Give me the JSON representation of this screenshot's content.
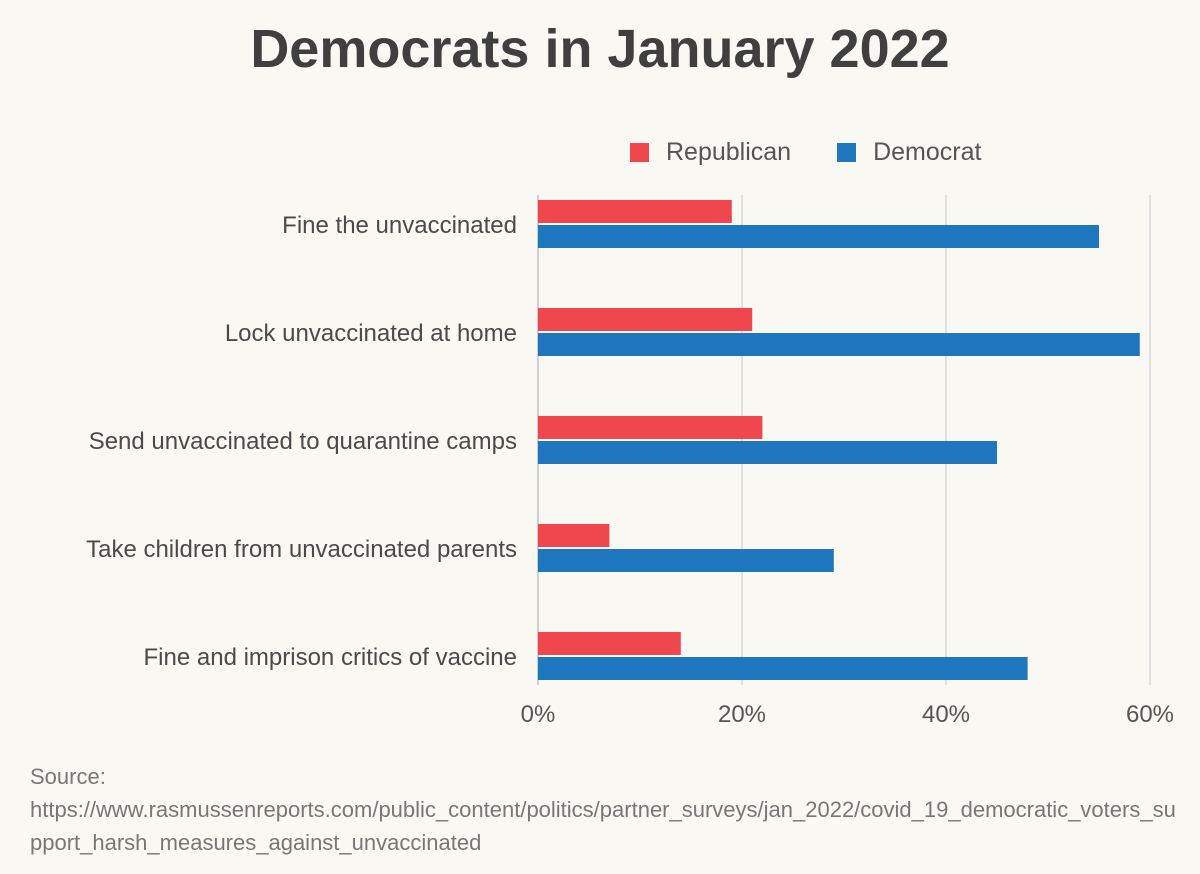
{
  "title": "Democrats in January 2022",
  "chart_data": {
    "type": "bar",
    "orientation": "horizontal",
    "categories": [
      "Fine the unvaccinated",
      "Lock unvaccinated at home",
      "Send unvaccinated to quarantine camps",
      "Take children from unvaccinated parents",
      "Fine and imprison critics of vaccine"
    ],
    "series": [
      {
        "name": "Republican",
        "color": "#f0474f",
        "values": [
          19,
          21,
          22,
          7,
          14
        ]
      },
      {
        "name": "Democrat",
        "color": "#1f77c0",
        "values": [
          55,
          59,
          45,
          29,
          48
        ]
      }
    ],
    "xlim": [
      0,
      60
    ],
    "xticks": [
      0,
      20,
      40,
      60
    ],
    "xtick_labels": [
      "0%",
      "20%",
      "40%",
      "60%"
    ],
    "grid": true,
    "legend_position": "top-right",
    "xlabel": "",
    "ylabel": ""
  },
  "source": {
    "label": "Source:",
    "url": "https://www.rasmussenreports.com/public_content/politics/partner_surveys/jan_2022/covid_19_democratic_voters_support_harsh_measures_against_unvaccinated"
  }
}
